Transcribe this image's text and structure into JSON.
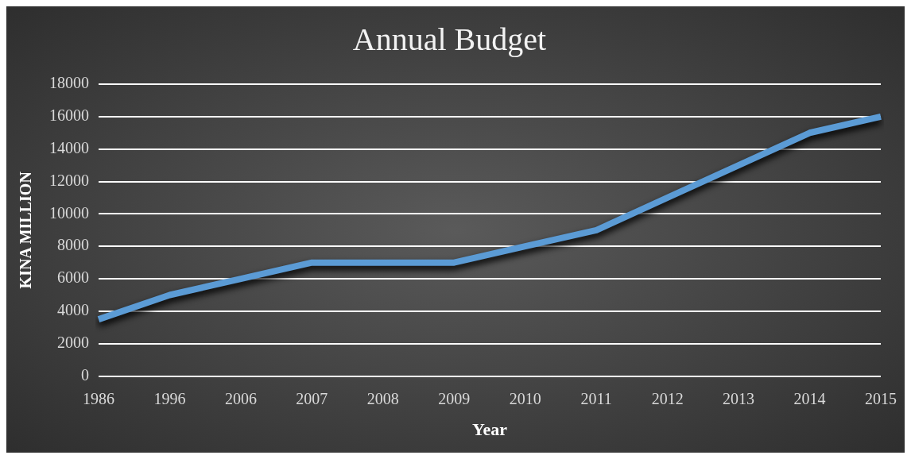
{
  "chart_data": {
    "type": "line",
    "title": "Annual Budget",
    "xlabel": "Year",
    "ylabel": "KINA MILLION",
    "categories": [
      "1986",
      "1996",
      "2006",
      "2007",
      "2008",
      "2009",
      "2010",
      "2011",
      "2012",
      "2013",
      "2014",
      "2015"
    ],
    "series": [
      {
        "color": "#5b9bd5",
        "values": [
          3500,
          5000,
          6000,
          7000,
          7000,
          7000,
          8000,
          9000,
          11000,
          13000,
          15000,
          16000
        ]
      }
    ],
    "ylim": [
      0,
      18000
    ],
    "yticks": [
      0,
      2000,
      4000,
      6000,
      8000,
      10000,
      12000,
      14000,
      16000,
      18000
    ],
    "grid": "y",
    "legend": false,
    "marker": "none",
    "line_style": "solid"
  }
}
